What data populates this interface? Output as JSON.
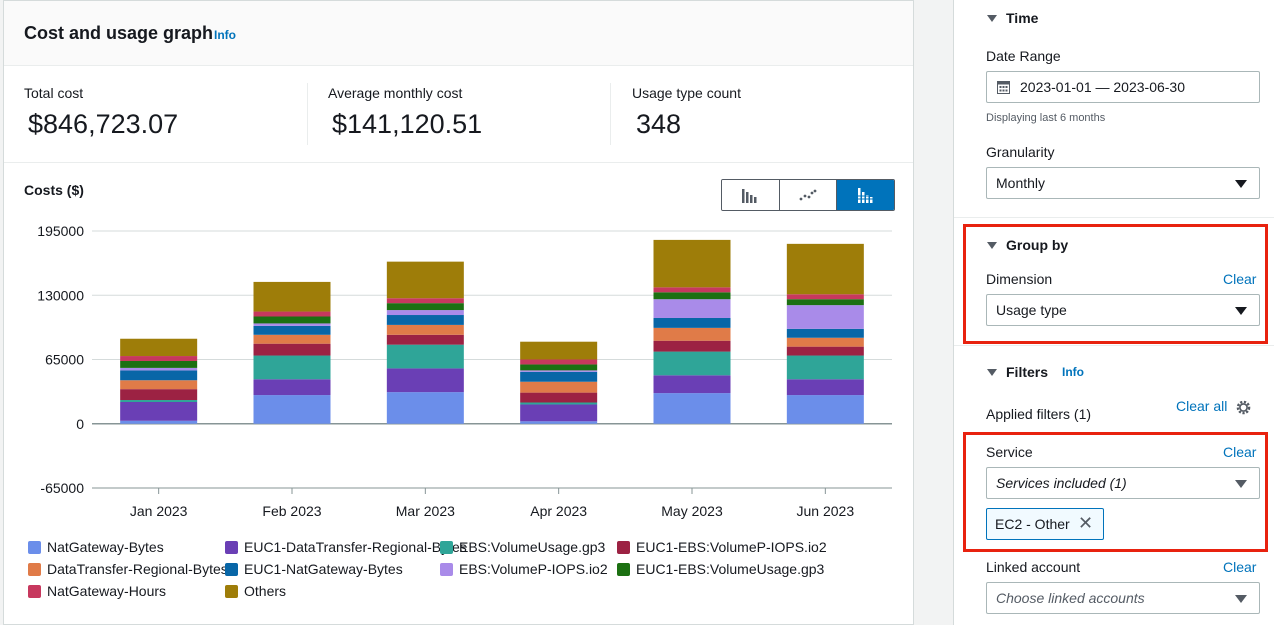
{
  "card": {
    "title": "Cost and usage graph",
    "info": "Info"
  },
  "stats": [
    {
      "label": "Total cost",
      "value": "$846,723.07"
    },
    {
      "label": "Average monthly cost",
      "value": "$141,120.51"
    },
    {
      "label": "Usage type count",
      "value": "348"
    }
  ],
  "chart_controls": {
    "options": [
      "bar-chart",
      "line-chart",
      "stacked-bar-chart"
    ],
    "selected": "stacked-bar-chart"
  },
  "chart_data": {
    "type": "bar",
    "stacked": true,
    "ylabel": "Costs ($)",
    "ylim": [
      -65000,
      195000
    ],
    "yticks": [
      "195000",
      "130000",
      "65000",
      "0",
      "-65000"
    ],
    "ytick_values": [
      195000,
      130000,
      65000,
      0,
      -65000
    ],
    "categories": [
      "Jan 2023",
      "Feb 2023",
      "Mar 2023",
      "Apr 2023",
      "May 2023",
      "Jun 2023"
    ],
    "series": [
      {
        "name": "NatGateway-Bytes",
        "color": "#6b8eea",
        "values": [
          3000,
          29000,
          32000,
          2500,
          31000,
          29000
        ]
      },
      {
        "name": "EUC1-DataTransfer-Regional-Bytes",
        "color": "#6a3fb5",
        "values": [
          19000,
          16000,
          24000,
          17000,
          18000,
          16000
        ]
      },
      {
        "name": "EBS:VolumeUsage.gp3",
        "color": "#2fa598",
        "values": [
          2000,
          24000,
          24000,
          2000,
          24000,
          24000
        ]
      },
      {
        "name": "EUC1-EBS:VolumeP-IOPS.io2",
        "color": "#9c2243",
        "values": [
          11000,
          12000,
          10000,
          10000,
          11000,
          9000
        ]
      },
      {
        "name": "DataTransfer-Regional-Bytes",
        "color": "#e07b48",
        "values": [
          9000,
          9000,
          10000,
          11000,
          13000,
          9000
        ]
      },
      {
        "name": "EUC1-NatGateway-Bytes",
        "color": "#0866a7",
        "values": [
          10000,
          9000,
          10000,
          10000,
          10000,
          9000
        ]
      },
      {
        "name": "EBS:VolumeP-IOPS.io2",
        "color": "#a98be9",
        "values": [
          2500,
          2500,
          5000,
          1500,
          19000,
          24000
        ]
      },
      {
        "name": "EUC1-EBS:VolumeUsage.gp3",
        "color": "#1c7012",
        "values": [
          7000,
          7000,
          7000,
          6000,
          7000,
          6000
        ]
      },
      {
        "name": "NatGateway-Hours",
        "color": "#c7385e",
        "values": [
          5000,
          5000,
          5000,
          5000,
          5000,
          5000
        ]
      },
      {
        "name": "Others",
        "color": "#9e7d09",
        "values": [
          17500,
          30000,
          37000,
          18000,
          48000,
          51000
        ]
      }
    ]
  },
  "filters_panel": {
    "time": {
      "heading": "Time",
      "date_range_label": "Date Range",
      "date_range_value": "2023-01-01 — 2023-06-30",
      "date_hint": "Displaying last 6 months",
      "granularity_label": "Granularity",
      "granularity_value": "Monthly"
    },
    "group_by": {
      "heading": "Group by",
      "dimension_label": "Dimension",
      "clear": "Clear",
      "dimension_value": "Usage type"
    },
    "filters": {
      "heading": "Filters",
      "info": "Info",
      "applied": "Applied filters (1)",
      "clear_all": "Clear all",
      "service_label": "Service",
      "service_clear": "Clear",
      "service_value": "Services included (1)",
      "token": "EC2 - Other",
      "linked_label": "Linked account",
      "linked_clear": "Clear",
      "linked_placeholder": "Choose linked accounts"
    }
  },
  "colors": {
    "highlight": "#e8220f",
    "link": "#0073bb"
  }
}
